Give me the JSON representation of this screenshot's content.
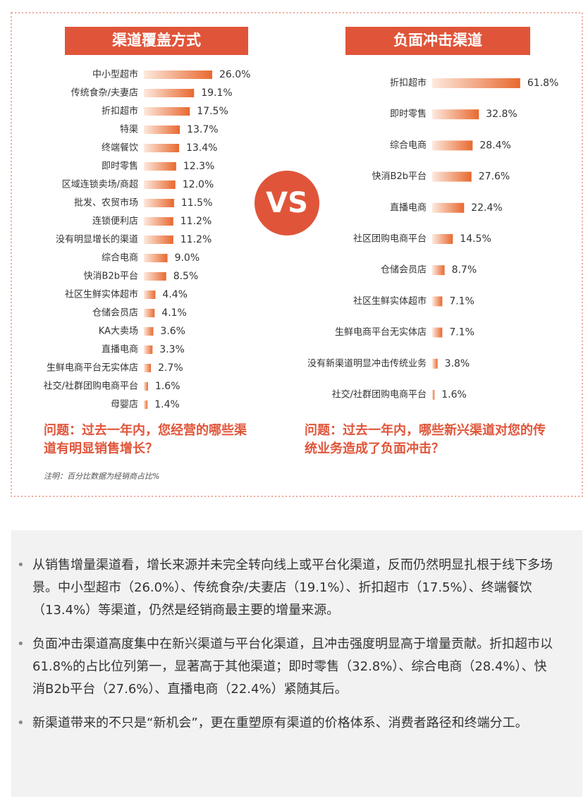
{
  "chart_data": [
    {
      "type": "bar",
      "title": "渠道覆盖方式",
      "categories": [
        "中小型超市",
        "传统食杂/夫妻店",
        "折扣超市",
        "特渠",
        "终端餐饮",
        "即时零售",
        "区域连锁卖场/商超",
        "批发、农贸市场",
        "连锁便利店",
        "没有明显增长的渠道",
        "综合电商",
        "快消B2b平台",
        "社区生鲜实体超市",
        "仓储会员店",
        "KA大卖场",
        "直播电商",
        "生鲜电商平台无实体店",
        "社交/社群团购电商平台",
        "母婴店"
      ],
      "values": [
        26.0,
        19.1,
        17.5,
        13.7,
        13.4,
        12.3,
        12.0,
        11.5,
        11.2,
        11.2,
        9.0,
        8.5,
        4.4,
        4.1,
        3.6,
        3.3,
        2.7,
        1.6,
        1.4
      ],
      "value_labels": [
        "26.0%",
        "19.1%",
        "17.5%",
        "13.7%",
        "13.4%",
        "12.3%",
        "12.0%",
        "11.5%",
        "11.2%",
        "11.2%",
        "9.0%",
        "8.5%",
        "4.4%",
        "4.1%",
        "3.6%",
        "3.3%",
        "2.7%",
        "1.6%",
        "1.4%"
      ],
      "color": "#e8692f",
      "question": "问题：过去一年内，您经营的哪些渠道有明显销售增长？"
    },
    {
      "type": "bar",
      "title": "负面冲击渠道",
      "categories": [
        "折扣超市",
        "即时零售",
        "综合电商",
        "快消B2b平台",
        "直播电商",
        "社区团购电商平台",
        "仓储会员店",
        "社区生鲜实体超市",
        "生鲜电商平台无实体店",
        "没有新渠道明显冲击传统业务",
        "社交/社群团购电商平台"
      ],
      "values": [
        61.8,
        32.8,
        28.4,
        27.6,
        22.4,
        14.5,
        8.7,
        7.1,
        7.1,
        3.8,
        1.6
      ],
      "value_labels": [
        "61.8%",
        "32.8%",
        "28.4%",
        "27.6%",
        "22.4%",
        "14.5%",
        "8.7%",
        "7.1%",
        "7.1%",
        "3.8%",
        "1.6%"
      ],
      "color": "#e8692f",
      "question": "问题：过去一年内，哪些新兴渠道对您的传统业务造成了负面冲击？"
    }
  ],
  "vs_label": "VS",
  "footnote": "注明：百分比数据为经销商占比%",
  "bullets": [
    "从销售增量渠道看，增长来源并未完全转向线上或平台化渠道，反而仍然明显扎根于线下多场景。中小型超市（26.0%）、传统食杂/夫妻店（19.1%）、折扣超市（17.5%）、终端餐饮（13.4%）等渠道，仍然是经销商最主要的增量来源。",
    "负面冲击渠道高度集中在新兴渠道与平台化渠道，且冲击强度明显高于增量贡献。折扣超市以61.8%的占比位列第一，显著高于其他渠道；即时零售（32.8%）、综合电商（28.4%）、快消B2b平台（27.6%）、直播电商（22.4%）紧随其后。",
    "新渠道带来的不只是“新机会”，更在重塑原有渠道的价格体系、消费者路径和终端分工。"
  ]
}
